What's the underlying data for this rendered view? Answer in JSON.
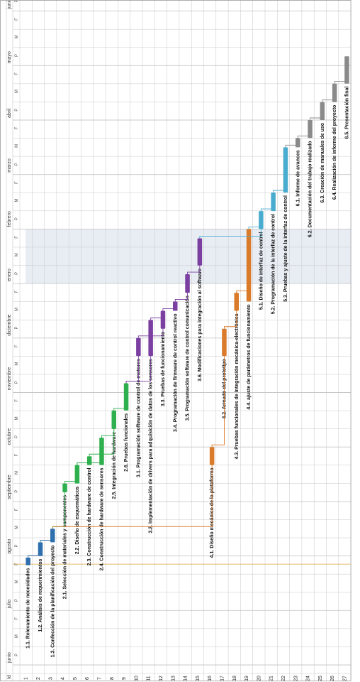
{
  "header": {
    "id_label": "Id",
    "months": [
      "junio",
      "julio",
      "agosto",
      "septiembre",
      "octubre",
      "noviembre",
      "diciembre",
      "enero",
      "febrero",
      "marzo",
      "abril",
      "mayo",
      "junio"
    ],
    "half_labels": [
      "P",
      "M",
      "F"
    ]
  },
  "colors": {
    "stage1": "#2f6fae",
    "stage2": "#2fb04e",
    "stage3": "#7a3fa0",
    "stage4": "#d97b2a",
    "stage5": "#4aaccf",
    "stage6": "#8a8a8a",
    "highlight": "#e8edf4",
    "line": "#d9a441",
    "grid": "#c8c8c8"
  },
  "chart_data": {
    "type": "gantt",
    "time_axis": "months (fractional), 0 = start of junio",
    "rows": [
      1,
      2,
      3,
      4,
      5,
      6,
      7,
      8,
      9,
      10,
      11,
      12,
      13,
      14,
      15,
      16,
      17,
      18,
      19,
      20,
      21,
      22,
      23,
      24,
      25,
      26,
      27
    ],
    "tasks": [
      {
        "row": 1,
        "label": "1.1. Relevamiento de necesidades",
        "start": 1.83,
        "end": 1.97,
        "stage": 1
      },
      {
        "row": 2,
        "label": "1.2. Análisis de requerimientos",
        "start": 2.0,
        "end": 2.25,
        "stage": 1
      },
      {
        "row": 3,
        "label": "1.3. Confección de la planificación del proyecto",
        "start": 2.25,
        "end": 2.5,
        "stage": 1
      },
      {
        "row": 4,
        "label": "2.1. Selección de materiales y componentes",
        "start": 3.17,
        "end": 3.33,
        "stage": 2
      },
      {
        "row": 5,
        "label": "2.2. Diseño de esquemáticos",
        "start": 3.33,
        "end": 3.67,
        "stage": 2
      },
      {
        "row": 6,
        "label": "2.3. Construcción de hardware de control",
        "start": 3.67,
        "end": 3.83,
        "stage": 2
      },
      {
        "row": 7,
        "label": "2.4. Construcción de hardware de sensores",
        "start": 3.67,
        "end": 4.17,
        "stage": 2
      },
      {
        "row": 8,
        "label": "2.5. Integración de hardware",
        "start": 4.33,
        "end": 4.67,
        "stage": 2
      },
      {
        "row": 9,
        "label": "2.6. Pruebas funcionales",
        "start": 4.67,
        "end": 5.17,
        "stage": 2
      },
      {
        "row": 10,
        "label": "3.1. Programación software de control de motores",
        "start": 5.67,
        "end": 6.0,
        "stage": 3
      },
      {
        "row": 11,
        "label": "3.2. Implementación de drivers para adquisición de datos de los sensores",
        "start": 5.67,
        "end": 6.33,
        "stage": 3
      },
      {
        "row": 12,
        "label": "3.3. Pruebas de funcionamiento",
        "start": 6.17,
        "end": 6.5,
        "stage": 3
      },
      {
        "row": 13,
        "label": "3.4. Programación de firmware de control reactivo",
        "start": 6.5,
        "end": 6.67,
        "stage": 3
      },
      {
        "row": 14,
        "label": "3.5. Programación software de control comunicación",
        "start": 6.83,
        "end": 7.17,
        "stage": 3
      },
      {
        "row": 15,
        "label": "3.6. Modificaciones para integración al software",
        "start": 7.33,
        "end": 7.83,
        "stage": 3
      },
      {
        "row": 16,
        "label": "4.1. Diseño mecánico de la plataforma",
        "start": 3.67,
        "end": 4.0,
        "stage": 4
      },
      {
        "row": 17,
        "label": "4.2. Armado del prototipo",
        "start": 5.67,
        "end": 6.17,
        "stage": 4
      },
      {
        "row": 18,
        "label": "4.3. Pruebas funcionales de integración mecánica-electrónica",
        "start": 6.5,
        "end": 6.83,
        "stage": 4
      },
      {
        "row": 19,
        "label": "4.4. ajuste de parámetros de funcionamiento",
        "start": 6.67,
        "end": 8.0,
        "stage": 4
      },
      {
        "row": 20,
        "label": "5.1. Diseño de interfaz de control",
        "start": 8.0,
        "end": 8.33,
        "stage": 5
      },
      {
        "row": 21,
        "label": "5.2. Programación de la interfaz de control",
        "start": 8.33,
        "end": 8.67,
        "stage": 5
      },
      {
        "row": 22,
        "label": "5.3. Pruebas y ajuste de la interfaz de control",
        "start": 8.67,
        "end": 9.5,
        "stage": 5
      },
      {
        "row": 23,
        "label": "6.1. Informe de avances",
        "start": 9.5,
        "end": 9.67,
        "stage": 6
      },
      {
        "row": 24,
        "label": "6.2. Documentación del trabajo realizado",
        "start": 9.67,
        "end": 10.0,
        "stage": 6
      },
      {
        "row": 25,
        "label": "6.3. Creación de manuales de uso",
        "start": 10.0,
        "end": 10.33,
        "stage": 6
      },
      {
        "row": 26,
        "label": "6.4. Realización de informe del proyecto",
        "start": 10.33,
        "end": 10.67,
        "stage": 6
      },
      {
        "row": 27,
        "label": "6.5. Presentación final",
        "start": 10.67,
        "end": 11.17,
        "stage": 6
      }
    ],
    "dependencies": [
      [
        1,
        2
      ],
      [
        2,
        3
      ],
      [
        3,
        4
      ],
      [
        4,
        5
      ],
      [
        5,
        6
      ],
      [
        5,
        7
      ],
      [
        6,
        8
      ],
      [
        7,
        8
      ],
      [
        8,
        9
      ],
      [
        9,
        10
      ],
      [
        9,
        11
      ],
      [
        10,
        12
      ],
      [
        11,
        12
      ],
      [
        12,
        13
      ],
      [
        13,
        14
      ],
      [
        14,
        15
      ],
      [
        15,
        20
      ],
      [
        3,
        16
      ],
      [
        16,
        17
      ],
      [
        17,
        18
      ],
      [
        18,
        19
      ],
      [
        19,
        20
      ],
      [
        20,
        21
      ],
      [
        21,
        22
      ],
      [
        22,
        23
      ],
      [
        23,
        24
      ],
      [
        24,
        25
      ],
      [
        25,
        26
      ],
      [
        26,
        27
      ]
    ],
    "highlight_months": [
      7
    ],
    "vline_month": 1.85
  }
}
